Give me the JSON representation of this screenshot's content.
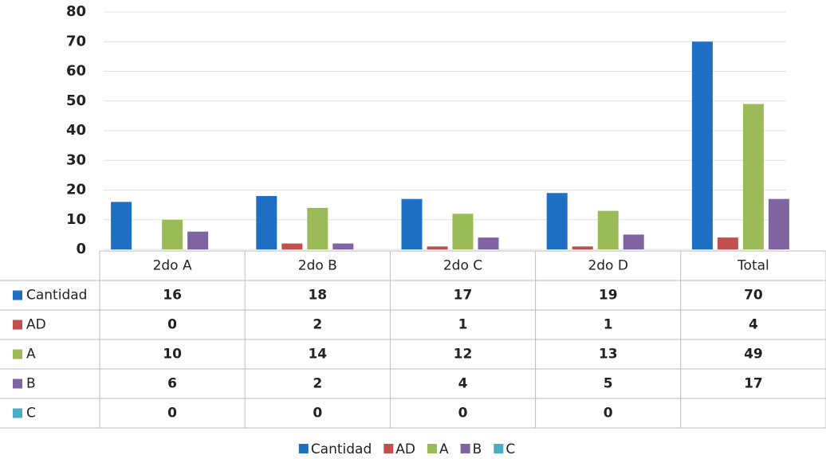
{
  "chart_data": {
    "type": "bar",
    "categories": [
      "2do A",
      "2do B",
      "2do C",
      "2do D",
      "Total"
    ],
    "series": [
      {
        "name": "Cantidad",
        "color": "#1f6fc5",
        "values": [
          16,
          18,
          17,
          19,
          70
        ]
      },
      {
        "name": "AD",
        "color": "#c0504d",
        "values": [
          0,
          2,
          1,
          1,
          4
        ]
      },
      {
        "name": "A",
        "color": "#9bbb59",
        "values": [
          10,
          14,
          12,
          13,
          49
        ]
      },
      {
        "name": "B",
        "color": "#8064a2",
        "values": [
          6,
          2,
          4,
          5,
          17
        ]
      },
      {
        "name": "C",
        "color": "#4bacc6",
        "values": [
          0,
          0,
          0,
          0,
          null
        ]
      }
    ],
    "ylim": [
      0,
      80
    ],
    "yticks": [
      0,
      10,
      20,
      30,
      40,
      50,
      60,
      70,
      80
    ],
    "grid": true,
    "legend": "bottom"
  }
}
